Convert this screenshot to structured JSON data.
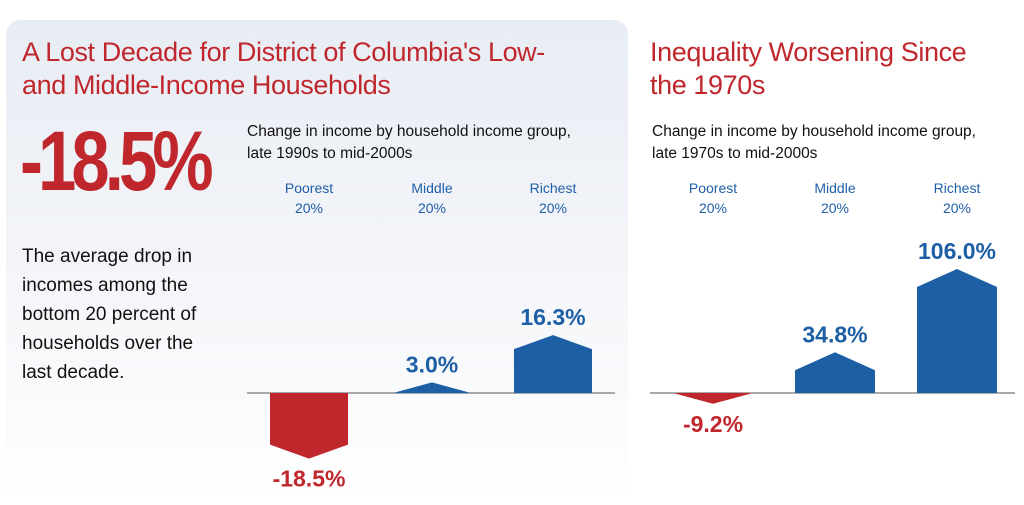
{
  "left_panel": {
    "title_line1": "A Lost Decade for District of Columbia's Low-",
    "title_line2": "and Middle-Income Households",
    "big_stat": "-18.5%",
    "stat_description": "The average drop in incomes among the bottom 20 percent of households over the last decade.",
    "subtitle_line1": "Change in income by household income group,",
    "subtitle_line2": "late 1990s to mid-2000s"
  },
  "right_panel": {
    "title_line1": "Inequality Worsening Since",
    "title_line2": "the 1970s",
    "subtitle_line1": "Change in income by household income group,",
    "subtitle_line2": "late 1970s to mid-2000s"
  },
  "colors": {
    "positive": "#1d5fa5",
    "negative": "#c0272d",
    "title": "#c0272d",
    "header": "#1e5fa8"
  },
  "chart_data": [
    {
      "type": "bar",
      "categories": [
        "Poorest 20%",
        "Middle 20%",
        "Richest 20%"
      ],
      "category_line1": [
        "Poorest",
        "Middle",
        "Richest"
      ],
      "category_line2": [
        "20%",
        "20%",
        "20%"
      ],
      "values": [
        -18.5,
        3.0,
        16.3
      ],
      "value_labels": [
        "-18.5%",
        "3.0%",
        "16.3%"
      ],
      "title": "A Lost Decade for District of Columbia's Low- and Middle-Income Households",
      "subtitle": "Change in income by household income group, late 1990s to mid-2000s",
      "xlabel": "",
      "ylabel": ""
    },
    {
      "type": "bar",
      "categories": [
        "Poorest 20%",
        "Middle 20%",
        "Richest 20%"
      ],
      "category_line1": [
        "Poorest",
        "Middle",
        "Richest"
      ],
      "category_line2": [
        "20%",
        "20%",
        "20%"
      ],
      "values": [
        -9.2,
        34.8,
        106.0
      ],
      "value_labels": [
        "-9.2%",
        "34.8%",
        "106.0%"
      ],
      "title": "Inequality Worsening Since the 1970s",
      "subtitle": "Change in income by household income group, late 1970s to mid-2000s",
      "xlabel": "",
      "ylabel": ""
    }
  ]
}
